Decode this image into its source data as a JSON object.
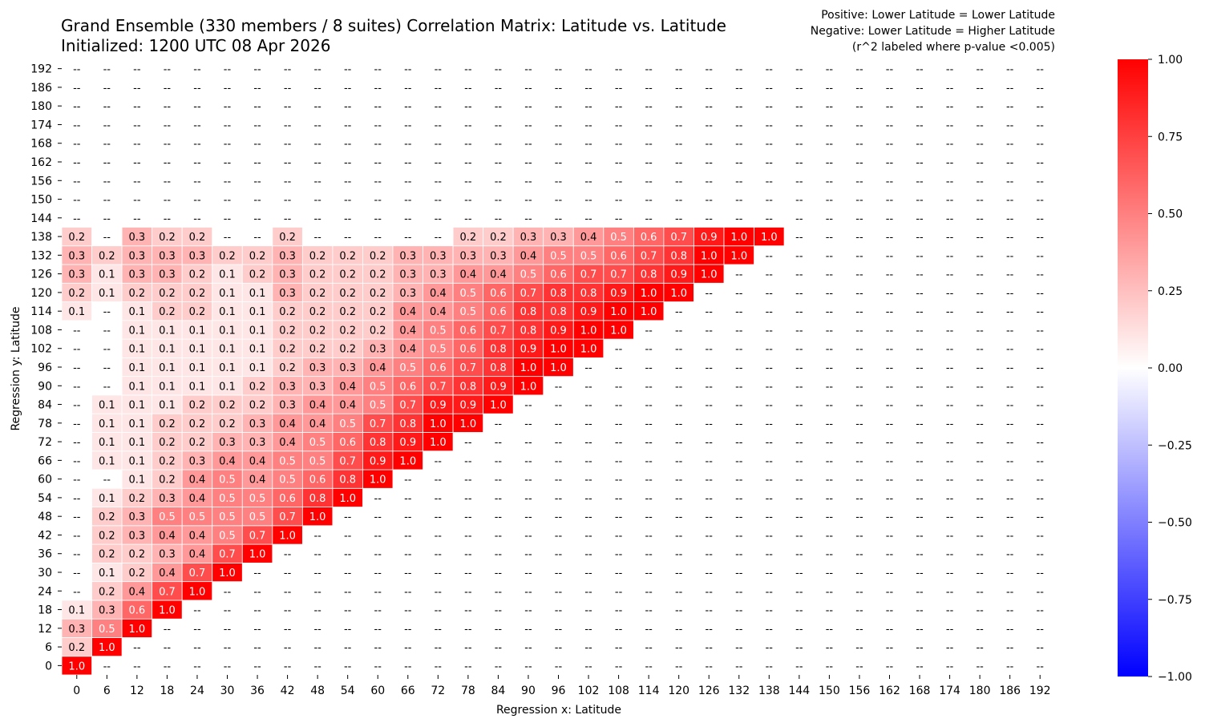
{
  "chart_data": {
    "type": "heatmap",
    "title_line1": "Grand Ensemble (330 members / 8 suites) Correlation Matrix: Latitude vs. Latitude",
    "title_line2": "Initialized: 1200 UTC 08 Apr 2026",
    "note_lines": [
      "Positive: Lower Latitude = Lower Latitude",
      "Negative: Lower Latitude = Higher Latitude",
      "(r^2 labeled where p-value <0.005)"
    ],
    "xlabel": "Regression x: Latitude",
    "ylabel": "Regression y: Latitude",
    "x_categories": [
      "0",
      "6",
      "12",
      "18",
      "24",
      "30",
      "36",
      "42",
      "48",
      "54",
      "60",
      "66",
      "72",
      "78",
      "84",
      "90",
      "96",
      "102",
      "108",
      "114",
      "120",
      "126",
      "132",
      "138",
      "144",
      "150",
      "156",
      "162",
      "168",
      "174",
      "180",
      "186",
      "192"
    ],
    "y_categories": [
      "0",
      "6",
      "12",
      "18",
      "24",
      "30",
      "36",
      "42",
      "48",
      "54",
      "60",
      "66",
      "72",
      "78",
      "84",
      "90",
      "96",
      "102",
      "108",
      "114",
      "120",
      "126",
      "132",
      "138",
      "144",
      "150",
      "156",
      "162",
      "168",
      "174",
      "180",
      "186",
      "192"
    ],
    "missing_label": "--",
    "rows": [
      {
        "y": "0",
        "values": [
          1.0
        ]
      },
      {
        "y": "6",
        "values": [
          0.2,
          1.0
        ]
      },
      {
        "y": "12",
        "values": [
          0.3,
          0.5,
          1.0
        ]
      },
      {
        "y": "18",
        "values": [
          0.1,
          0.3,
          0.6,
          1.0
        ]
      },
      {
        "y": "24",
        "values": [
          null,
          0.2,
          0.4,
          0.7,
          1.0
        ]
      },
      {
        "y": "30",
        "values": [
          null,
          0.1,
          0.2,
          0.4,
          0.7,
          1.0
        ]
      },
      {
        "y": "36",
        "values": [
          null,
          0.2,
          0.2,
          0.3,
          0.4,
          0.7,
          1.0
        ]
      },
      {
        "y": "42",
        "values": [
          null,
          0.2,
          0.3,
          0.4,
          0.4,
          0.5,
          0.7,
          1.0
        ]
      },
      {
        "y": "48",
        "values": [
          null,
          0.2,
          0.3,
          0.5,
          0.5,
          0.5,
          0.5,
          0.7,
          1.0
        ]
      },
      {
        "y": "54",
        "values": [
          null,
          0.1,
          0.2,
          0.3,
          0.4,
          0.5,
          0.5,
          0.6,
          0.8,
          1.0
        ]
      },
      {
        "y": "60",
        "values": [
          null,
          null,
          0.1,
          0.2,
          0.4,
          0.5,
          0.4,
          0.5,
          0.6,
          0.8,
          1.0
        ]
      },
      {
        "y": "66",
        "values": [
          null,
          0.1,
          0.1,
          0.2,
          0.3,
          0.4,
          0.4,
          0.5,
          0.5,
          0.7,
          0.9,
          1.0
        ]
      },
      {
        "y": "72",
        "values": [
          null,
          0.1,
          0.1,
          0.2,
          0.2,
          0.3,
          0.3,
          0.4,
          0.5,
          0.6,
          0.8,
          0.9,
          1.0
        ]
      },
      {
        "y": "78",
        "values": [
          null,
          0.1,
          0.1,
          0.2,
          0.2,
          0.2,
          0.3,
          0.4,
          0.4,
          0.5,
          0.7,
          0.8,
          1.0,
          1.0
        ]
      },
      {
        "y": "84",
        "values": [
          null,
          0.1,
          0.1,
          0.1,
          0.2,
          0.2,
          0.2,
          0.3,
          0.4,
          0.4,
          0.5,
          0.7,
          0.9,
          0.9,
          1.0
        ]
      },
      {
        "y": "90",
        "values": [
          null,
          null,
          0.1,
          0.1,
          0.1,
          0.1,
          0.2,
          0.3,
          0.3,
          0.4,
          0.5,
          0.6,
          0.7,
          0.8,
          0.9,
          1.0
        ]
      },
      {
        "y": "96",
        "values": [
          null,
          null,
          0.1,
          0.1,
          0.1,
          0.1,
          0.1,
          0.2,
          0.3,
          0.3,
          0.4,
          0.5,
          0.6,
          0.7,
          0.8,
          1.0,
          1.0
        ]
      },
      {
        "y": "102",
        "values": [
          null,
          null,
          0.1,
          0.1,
          0.1,
          0.1,
          0.1,
          0.2,
          0.2,
          0.2,
          0.3,
          0.4,
          0.5,
          0.6,
          0.8,
          0.9,
          1.0,
          1.0
        ]
      },
      {
        "y": "108",
        "values": [
          null,
          null,
          0.1,
          0.1,
          0.1,
          0.1,
          0.1,
          0.2,
          0.2,
          0.2,
          0.2,
          0.4,
          0.5,
          0.6,
          0.7,
          0.8,
          0.9,
          1.0,
          1.0
        ]
      },
      {
        "y": "114",
        "values": [
          0.1,
          null,
          0.1,
          0.2,
          0.2,
          0.1,
          0.1,
          0.2,
          0.2,
          0.2,
          0.2,
          0.4,
          0.4,
          0.5,
          0.6,
          0.8,
          0.8,
          0.9,
          1.0,
          1.0
        ]
      },
      {
        "y": "120",
        "values": [
          0.2,
          0.1,
          0.2,
          0.2,
          0.2,
          0.1,
          0.1,
          0.3,
          0.2,
          0.2,
          0.2,
          0.3,
          0.4,
          0.5,
          0.6,
          0.7,
          0.8,
          0.8,
          0.9,
          1.0,
          1.0
        ]
      },
      {
        "y": "126",
        "values": [
          0.3,
          0.1,
          0.3,
          0.3,
          0.2,
          0.1,
          0.2,
          0.3,
          0.2,
          0.2,
          0.2,
          0.3,
          0.3,
          0.4,
          0.4,
          0.5,
          0.6,
          0.7,
          0.7,
          0.8,
          0.9,
          1.0
        ]
      },
      {
        "y": "132",
        "values": [
          0.3,
          0.2,
          0.3,
          0.3,
          0.3,
          0.2,
          0.2,
          0.3,
          0.2,
          0.2,
          0.2,
          0.3,
          0.3,
          0.3,
          0.3,
          0.4,
          0.5,
          0.5,
          0.6,
          0.7,
          0.8,
          1.0,
          1.0
        ]
      },
      {
        "y": "138",
        "values": [
          0.2,
          null,
          0.3,
          0.2,
          0.2,
          null,
          null,
          0.2,
          null,
          null,
          null,
          null,
          null,
          0.2,
          0.2,
          0.3,
          0.3,
          0.4,
          0.5,
          0.6,
          0.7,
          0.9,
          1.0,
          1.0
        ]
      },
      {
        "y": "144",
        "values": []
      },
      {
        "y": "150",
        "values": []
      },
      {
        "y": "156",
        "values": []
      },
      {
        "y": "162",
        "values": []
      },
      {
        "y": "168",
        "values": []
      },
      {
        "y": "174",
        "values": []
      },
      {
        "y": "180",
        "values": []
      },
      {
        "y": "186",
        "values": []
      },
      {
        "y": "192",
        "values": []
      }
    ],
    "colorbar": {
      "range": [
        -1.0,
        1.0
      ],
      "ticks": [
        "1.00",
        "0.75",
        "0.50",
        "0.25",
        "0.00",
        "−0.25",
        "−0.50",
        "−0.75",
        "−1.00"
      ],
      "tick_values": [
        1.0,
        0.75,
        0.5,
        0.25,
        0.0,
        -0.25,
        -0.5,
        -0.75,
        -1.0
      ],
      "colors": {
        "negative": "#0000ff",
        "zero": "#ffffff",
        "positive": "#ff0000"
      }
    }
  }
}
